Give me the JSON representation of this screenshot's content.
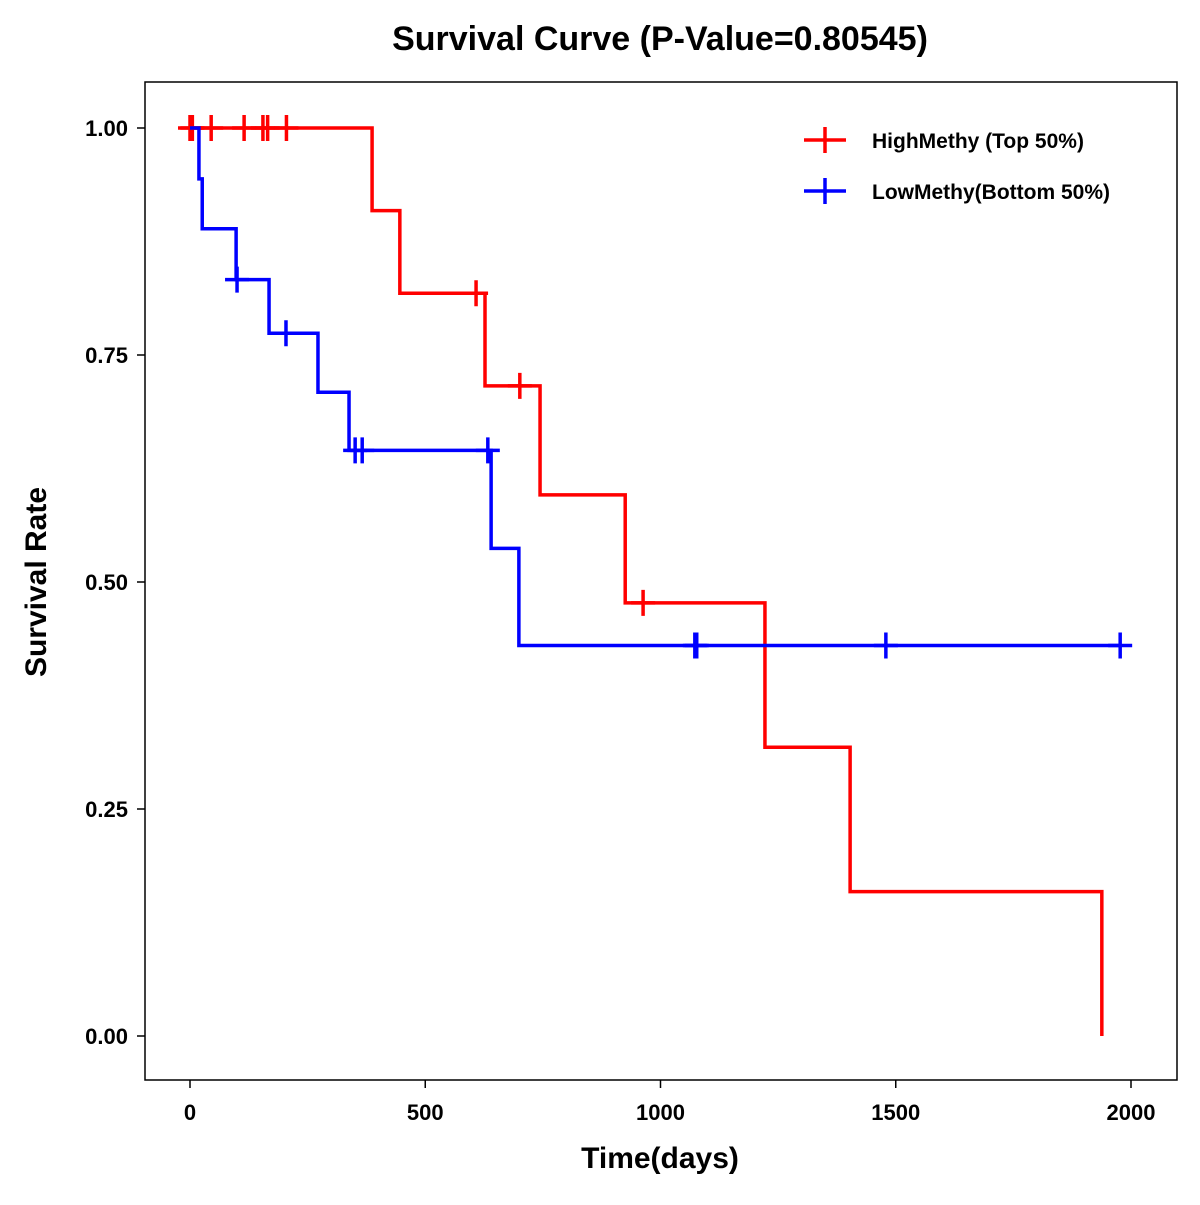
{
  "chart_data": {
    "type": "line",
    "subtype": "kaplan-meier-step",
    "title": "Survival Curve (P-Value=0.80545)",
    "xlabel": "Time(days)",
    "ylabel": "Survival Rate",
    "xlim": [
      -95,
      2095
    ],
    "ylim": [
      -0.048,
      1.05
    ],
    "xticks": [
      0,
      500,
      1000,
      1500,
      2000
    ],
    "xtick_labels": [
      "0",
      "500",
      "1000",
      "1500",
      "2000"
    ],
    "yticks": [
      0,
      0.25,
      0.5,
      0.75,
      1.0
    ],
    "ytick_labels": [
      "0.00",
      "0.25",
      "0.50",
      "0.75",
      "1.00"
    ],
    "grid": false,
    "legend_position": "top-right",
    "series": [
      {
        "name": "HighMethy (Top 50%)",
        "color": "#ff0000",
        "steps": [
          [
            0,
            1.0
          ],
          [
            387,
            0.909
          ],
          [
            446,
            0.818
          ],
          [
            627,
            0.716
          ],
          [
            744,
            0.596
          ],
          [
            925,
            0.477
          ],
          [
            1222,
            0.318
          ],
          [
            1403,
            0.159
          ],
          [
            1938,
            0.0
          ]
        ],
        "end_time": 1938,
        "censored": [
          [
            0,
            1.0
          ],
          [
            5,
            1.0
          ],
          [
            45,
            1.0
          ],
          [
            115,
            1.0
          ],
          [
            155,
            1.0
          ],
          [
            165,
            1.0
          ],
          [
            205,
            1.0
          ],
          [
            608,
            0.818
          ],
          [
            701,
            0.716
          ],
          [
            963,
            0.477
          ]
        ]
      },
      {
        "name": "LowMethy(Bottom 50%)",
        "color": "#0000ff",
        "steps": [
          [
            0,
            1.0
          ],
          [
            19,
            0.944
          ],
          [
            26,
            0.889
          ],
          [
            98,
            0.833
          ],
          [
            168,
            0.774
          ],
          [
            272,
            0.709
          ],
          [
            338,
            0.645
          ],
          [
            640,
            0.537
          ],
          [
            699,
            0.43
          ]
        ],
        "end_time": 1977,
        "censored": [
          [
            100,
            0.833
          ],
          [
            204,
            0.774
          ],
          [
            351,
            0.645
          ],
          [
            366,
            0.645
          ],
          [
            633,
            0.645
          ],
          [
            1073,
            0.43
          ],
          [
            1077,
            0.43
          ],
          [
            1479,
            0.43
          ],
          [
            1977,
            0.43
          ]
        ]
      }
    ]
  }
}
